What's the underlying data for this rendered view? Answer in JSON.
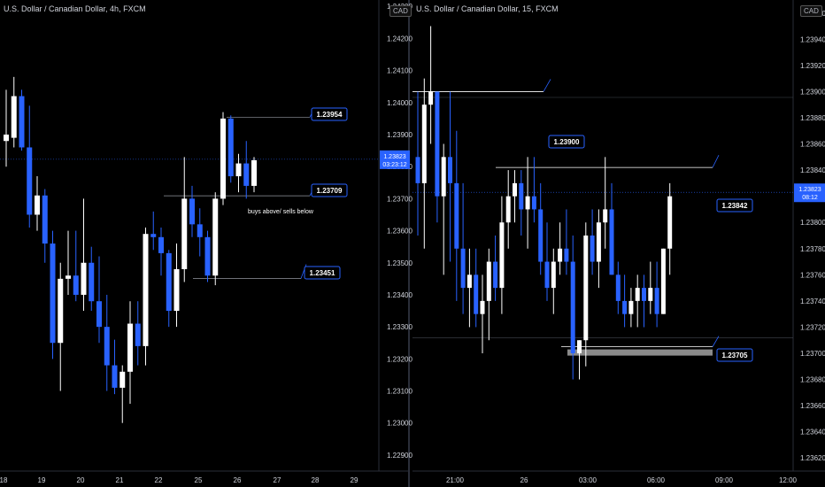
{
  "panels": [
    {
      "symbol_title": "U.S. Dollar / Canadian Dollar, 4h, FXCM",
      "currency_badge": "CAD",
      "last_price": "1.23823",
      "countdown": "03:23:12"
    },
    {
      "symbol_title": "U.S. Dollar / Canadian Dollar, 15, FXCM",
      "currency_badge": "CAD",
      "last_price": "1.23823",
      "countdown": "08:12"
    }
  ],
  "colors": {
    "bull": "#ffffff",
    "bear": "#2962ff",
    "background": "#000000",
    "label_border": "#2962ff"
  },
  "chart_data": [
    {
      "type": "candlestick",
      "symbol": "USDCAD",
      "interval": "4h",
      "ylim": [
        1.2285,
        1.2432
      ],
      "y_ticks": [
        "1.24300",
        "1.24200",
        "1.24100",
        "1.24000",
        "1.23900",
        "1.23800",
        "1.23700",
        "1.23600",
        "1.23500",
        "1.23400",
        "1.23300",
        "1.23200",
        "1.23100",
        "1.23000",
        "1.22900"
      ],
      "x_ticks": [
        "18",
        "19",
        "20",
        "21",
        "22",
        "25",
        "26",
        "27",
        "28",
        "29"
      ],
      "price_labels": [
        "1.23954",
        "1.23709",
        "1.23451"
      ],
      "annotations": [
        "buys above/ sells below"
      ],
      "candles": [
        [
          1.2388,
          1.2404,
          1.238,
          1.239
        ],
        [
          1.2389,
          1.2408,
          1.2386,
          1.2402
        ],
        [
          1.2402,
          1.2404,
          1.2385,
          1.2386
        ],
        [
          1.2386,
          1.2399,
          1.2361,
          1.2365
        ],
        [
          1.2365,
          1.2377,
          1.236,
          1.2371
        ],
        [
          1.2371,
          1.2373,
          1.235,
          1.2356
        ],
        [
          1.2356,
          1.236,
          1.232,
          1.2325
        ],
        [
          1.2325,
          1.235,
          1.231,
          1.2345
        ],
        [
          1.2345,
          1.236,
          1.234,
          1.2346
        ],
        [
          1.2346,
          1.236,
          1.2338,
          1.234
        ],
        [
          1.234,
          1.237,
          1.2335,
          1.235
        ],
        [
          1.235,
          1.2355,
          1.2335,
          1.2338
        ],
        [
          1.2338,
          1.2352,
          1.2325,
          1.233
        ],
        [
          1.233,
          1.234,
          1.231,
          1.2318
        ],
        [
          1.2318,
          1.2326,
          1.2309,
          1.2311
        ],
        [
          1.2311,
          1.2318,
          1.23,
          1.2316
        ],
        [
          1.2316,
          1.2338,
          1.2306,
          1.2331
        ],
        [
          1.2331,
          1.2338,
          1.2318,
          1.2324
        ],
        [
          1.2324,
          1.2361,
          1.2318,
          1.2359
        ],
        [
          1.2359,
          1.2366,
          1.2354,
          1.2358
        ],
        [
          1.2358,
          1.2361,
          1.2346,
          1.2353
        ],
        [
          1.2353,
          1.2354,
          1.233,
          1.2335
        ],
        [
          1.2335,
          1.2356,
          1.233,
          1.2348
        ],
        [
          1.2348,
          1.2383,
          1.2344,
          1.237
        ],
        [
          1.237,
          1.2374,
          1.2358,
          1.2362
        ],
        [
          1.2362,
          1.2367,
          1.2352,
          1.2358
        ],
        [
          1.2358,
          1.236,
          1.2344,
          1.2346
        ],
        [
          1.2346,
          1.2372,
          1.2343,
          1.237
        ],
        [
          1.237,
          1.2397,
          1.2368,
          1.2395
        ],
        [
          1.2395,
          1.2396,
          1.2375,
          1.2377
        ],
        [
          1.2377,
          1.2384,
          1.2372,
          1.2381
        ],
        [
          1.2381,
          1.2388,
          1.237,
          1.2374
        ],
        [
          1.2374,
          1.2383,
          1.2372,
          1.2382
        ]
      ]
    },
    {
      "type": "candlestick",
      "symbol": "USDCAD",
      "interval": "15",
      "ylim": [
        1.2361,
        1.2397
      ],
      "y_ticks": [
        "1.23960",
        "1.23940",
        "1.23920",
        "1.23900",
        "1.23880",
        "1.23860",
        "1.23840",
        "1.23820",
        "1.23800",
        "1.23780",
        "1.23760",
        "1.23740",
        "1.23720",
        "1.23700",
        "1.23680",
        "1.23660",
        "1.23640",
        "1.23620"
      ],
      "x_ticks": [
        "21:00",
        "26",
        "03:00",
        "06:00",
        "09:00",
        "12:00"
      ],
      "price_labels": [
        "1.23900",
        "1.23842",
        "1.23705"
      ],
      "candles": [
        [
          1.2385,
          1.239,
          1.2379,
          1.2383
        ],
        [
          1.2383,
          1.2391,
          1.2378,
          1.2389
        ],
        [
          1.2389,
          1.2395,
          1.2386,
          1.239
        ],
        [
          1.239,
          1.239,
          1.238,
          1.2382
        ],
        [
          1.2382,
          1.2386,
          1.2376,
          1.2385
        ],
        [
          1.2385,
          1.239,
          1.2377,
          1.2383
        ],
        [
          1.2383,
          1.2387,
          1.2374,
          1.2378
        ],
        [
          1.2378,
          1.2383,
          1.2373,
          1.2375
        ],
        [
          1.2375,
          1.2378,
          1.2372,
          1.2376
        ],
        [
          1.2376,
          1.2378,
          1.2372,
          1.2373
        ],
        [
          1.2373,
          1.2376,
          1.237,
          1.2374
        ],
        [
          1.2374,
          1.2378,
          1.2371,
          1.2377
        ],
        [
          1.2377,
          1.2379,
          1.2374,
          1.2375
        ],
        [
          1.2375,
          1.2382,
          1.2373,
          1.238
        ],
        [
          1.238,
          1.2384,
          1.2378,
          1.2382
        ],
        [
          1.2382,
          1.2384,
          1.238,
          1.2383
        ],
        [
          1.2383,
          1.2384,
          1.2379,
          1.2381
        ],
        [
          1.2381,
          1.2385,
          1.2378,
          1.2382
        ],
        [
          1.2382,
          1.2385,
          1.238,
          1.2381
        ],
        [
          1.2381,
          1.2383,
          1.2376,
          1.2377
        ],
        [
          1.2377,
          1.238,
          1.2374,
          1.2375
        ],
        [
          1.2375,
          1.2378,
          1.2373,
          1.2377
        ],
        [
          1.2377,
          1.238,
          1.2376,
          1.2378
        ],
        [
          1.2378,
          1.2381,
          1.2376,
          1.2377
        ],
        [
          1.2377,
          1.2379,
          1.2368,
          1.237
        ],
        [
          1.237,
          1.2371,
          1.2368,
          1.2371
        ],
        [
          1.2371,
          1.238,
          1.2369,
          1.2379
        ],
        [
          1.2379,
          1.2381,
          1.2376,
          1.2377
        ],
        [
          1.2377,
          1.2381,
          1.2375,
          1.238
        ],
        [
          1.238,
          1.2385,
          1.2378,
          1.2381
        ],
        [
          1.2381,
          1.2383,
          1.2376,
          1.2376
        ],
        [
          1.2376,
          1.2377,
          1.2373,
          1.2374
        ],
        [
          1.2374,
          1.2376,
          1.2372,
          1.2373
        ],
        [
          1.2373,
          1.2375,
          1.2372,
          1.2374
        ],
        [
          1.2374,
          1.2376,
          1.2372,
          1.2375
        ],
        [
          1.2375,
          1.2376,
          1.2372,
          1.2374
        ],
        [
          1.2374,
          1.2377,
          1.2373,
          1.2375
        ],
        [
          1.2375,
          1.2377,
          1.2372,
          1.2373
        ],
        [
          1.2373,
          1.2378,
          1.2373,
          1.2378
        ],
        [
          1.2378,
          1.2383,
          1.2376,
          1.2382
        ]
      ]
    }
  ]
}
